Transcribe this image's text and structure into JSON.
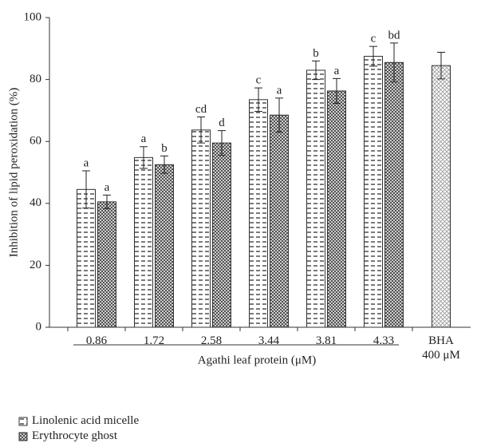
{
  "chart_data": {
    "type": "bar",
    "ylabel": "Inhibition of lipid peroxidation (%)",
    "xlabel": "Agathi leaf protein (μM)",
    "categories": [
      "0.86",
      "1.72",
      "2.58",
      "3.44",
      "3.81",
      "4.33",
      "BHA 400 μM"
    ],
    "series": [
      {
        "name": "Linolenic acid micelle",
        "color": "#ffffff",
        "values": [
          44.5,
          54.8,
          63.7,
          73.5,
          83,
          87.5,
          null
        ],
        "errors": [
          6,
          3.5,
          4.2,
          3.8,
          3,
          3.2,
          null
        ],
        "letters": [
          "a",
          "a",
          "cd",
          "c",
          "b",
          "c",
          null
        ]
      },
      {
        "name": "Erythrocyte ghost",
        "color": "#555555",
        "values": [
          40.5,
          52.5,
          59.5,
          68.5,
          76.3,
          85.5,
          null
        ],
        "errors": [
          2.2,
          2.8,
          4,
          5.5,
          4,
          6.3,
          null
        ],
        "letters": [
          "a",
          "b",
          "d",
          "a",
          "a",
          "bd",
          null
        ]
      },
      {
        "color": "#999999",
        "values": [
          null,
          null,
          null,
          null,
          null,
          null,
          84.5
        ],
        "errors": [
          null,
          null,
          null,
          null,
          null,
          null,
          4.3
        ]
      }
    ],
    "ylim": [
      0,
      100
    ],
    "yticks": [
      0,
      20,
      40,
      60,
      80,
      100
    ],
    "grid": false
  }
}
